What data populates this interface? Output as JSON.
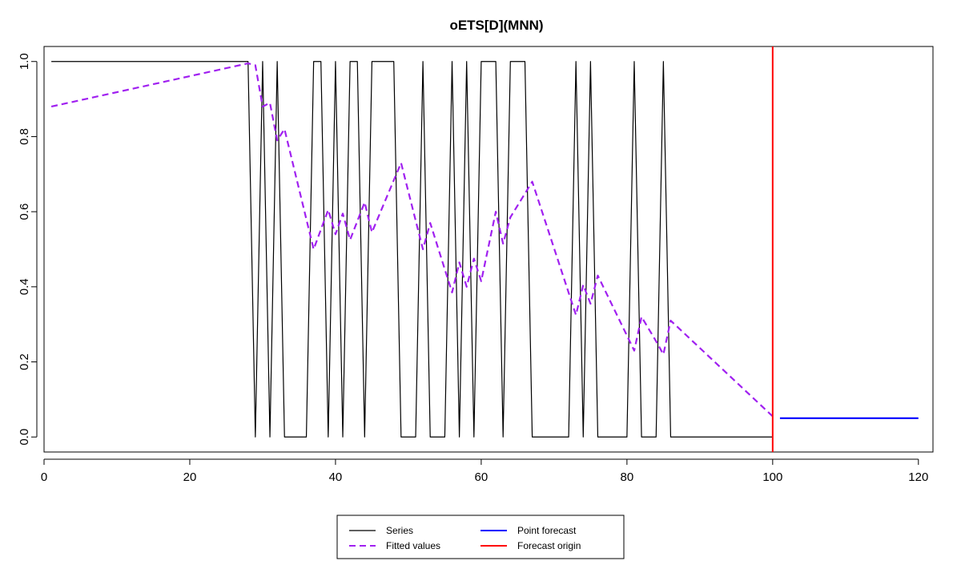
{
  "chart_data": {
    "type": "line",
    "title": "oETS[D](MNN)",
    "xlabel": "",
    "ylabel": "",
    "xlim": [
      0,
      122
    ],
    "ylim": [
      -0.04,
      1.04
    ],
    "xticks": [
      0,
      20,
      40,
      60,
      80,
      100,
      120
    ],
    "yticks": [
      0.0,
      0.2,
      0.4,
      0.6,
      0.8,
      1.0
    ],
    "legend_position": "bottom",
    "series": [
      {
        "name": "Series",
        "color": "#000000",
        "style": "solid",
        "x": [
          1,
          2,
          3,
          4,
          5,
          6,
          7,
          8,
          9,
          10,
          11,
          12,
          13,
          14,
          15,
          16,
          17,
          18,
          19,
          20,
          21,
          22,
          23,
          24,
          25,
          26,
          27,
          28,
          29,
          30,
          31,
          32,
          33,
          34,
          35,
          36,
          37,
          38,
          39,
          40,
          41,
          42,
          43,
          44,
          45,
          46,
          47,
          48,
          49,
          50,
          51,
          52,
          53,
          54,
          55,
          56,
          57,
          58,
          59,
          60,
          61,
          62,
          63,
          64,
          65,
          66,
          67,
          68,
          69,
          70,
          71,
          72,
          73,
          74,
          75,
          76,
          77,
          78,
          79,
          80,
          81,
          82,
          83,
          84,
          85,
          86,
          87,
          88,
          89,
          90,
          91,
          92,
          93,
          94,
          95,
          96,
          97,
          98,
          99,
          100
        ],
        "values": [
          1,
          1,
          1,
          1,
          1,
          1,
          1,
          1,
          1,
          1,
          1,
          1,
          1,
          1,
          1,
          1,
          1,
          1,
          1,
          1,
          1,
          1,
          1,
          1,
          1,
          1,
          1,
          1,
          0,
          1,
          0,
          1,
          0,
          0,
          0,
          0,
          1,
          1,
          0,
          1,
          0,
          1,
          1,
          0,
          1,
          1,
          1,
          1,
          0,
          0,
          0,
          1,
          0,
          0,
          0,
          1,
          0,
          1,
          0,
          1,
          1,
          1,
          0,
          1,
          1,
          1,
          0,
          0,
          0,
          0,
          0,
          0,
          1,
          0,
          1,
          0,
          0,
          0,
          0,
          0,
          1,
          0,
          0,
          0,
          1,
          0,
          0,
          0,
          0,
          0,
          0,
          0,
          0,
          0,
          0,
          0,
          0,
          0,
          0,
          0
        ]
      },
      {
        "name": "Fitted values",
        "color": "#a020f0",
        "style": "dashed",
        "x": [
          1,
          28,
          29,
          30,
          31,
          32,
          33,
          37,
          39,
          40,
          41,
          42,
          44,
          45,
          49,
          52,
          53,
          56,
          57,
          58,
          59,
          60,
          62,
          63,
          64,
          67,
          73,
          74,
          75,
          76,
          81,
          82,
          84,
          85,
          86,
          100
        ],
        "values": [
          0.88,
          0.995,
          0.99,
          0.88,
          0.89,
          0.79,
          0.82,
          0.5,
          0.605,
          0.54,
          0.595,
          0.525,
          0.625,
          0.545,
          0.73,
          0.5,
          0.57,
          0.385,
          0.465,
          0.4,
          0.475,
          0.415,
          0.6,
          0.515,
          0.585,
          0.68,
          0.325,
          0.405,
          0.355,
          0.43,
          0.23,
          0.32,
          0.255,
          0.22,
          0.31,
          0.055
        ]
      },
      {
        "name": "Point forecast",
        "color": "#0000ff",
        "style": "solid",
        "x": [
          101,
          120
        ],
        "values": [
          0.05,
          0.05
        ]
      }
    ],
    "vlines": [
      {
        "name": "Forecast origin",
        "x": 100,
        "color": "#ff0000"
      }
    ]
  }
}
